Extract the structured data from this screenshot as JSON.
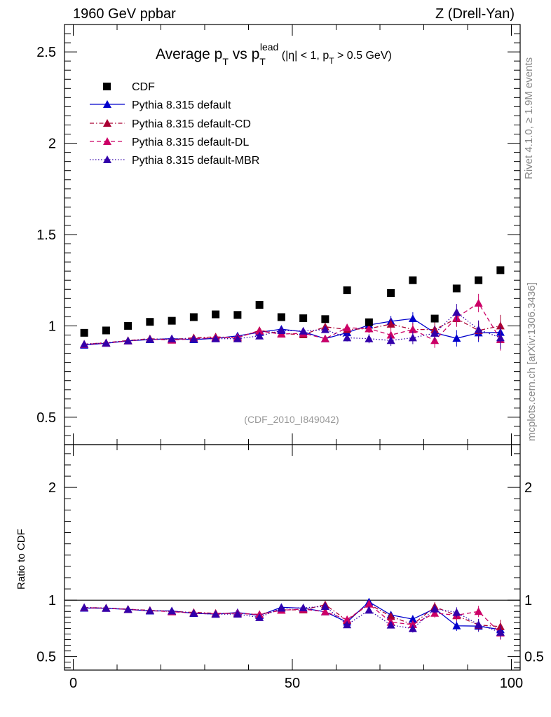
{
  "header": {
    "left": "1960 GeV ppbar",
    "right": "Z (Drell-Yan)"
  },
  "side_labels": {
    "rivet": "Rivet 4.1.0, ≥ 1.9M events",
    "mcplots": "mcplots.cern.ch [arXiv:1306.3436]"
  },
  "chart_data": {
    "type": "line",
    "title": {
      "prefix": "Average p",
      "sub1": "T",
      "mid": " vs p",
      "sub2": "T",
      "sup2": "lead",
      "cut_open": " (|η| < 1, p",
      "cut_sub": "T",
      "cut_close": " > 0.5 GeV)"
    },
    "reference": "(CDF_2010_I849042)",
    "xlim": [
      -2,
      102
    ],
    "x_ticks": [
      0,
      50,
      100
    ],
    "main": {
      "ylim": [
        0.35,
        2.65
      ],
      "y_ticks": [
        0.5,
        1,
        1.5,
        2,
        2.5
      ],
      "ylabel": ""
    },
    "ratio": {
      "ylim": [
        0.38,
        2.38
      ],
      "y_ticks": [
        0.5,
        1,
        2
      ],
      "ylabel": "Ratio to CDF",
      "reference_line": 1
    },
    "x": [
      2.5,
      7.5,
      12.5,
      17.5,
      22.5,
      27.5,
      32.5,
      37.5,
      42.5,
      47.5,
      52.5,
      57.5,
      62.5,
      67.5,
      72.5,
      77.5,
      82.5,
      87.5,
      92.5,
      97.5
    ],
    "data": {
      "name": "CDF",
      "values": [
        0.962,
        0.975,
        1.0,
        1.022,
        1.028,
        1.048,
        1.063,
        1.06,
        1.115,
        1.048,
        1.042,
        1.037,
        1.195,
        1.02,
        1.18,
        1.25,
        1.04,
        1.205,
        1.25,
        1.305
      ]
    },
    "series": [
      {
        "name": "Pythia 8.315 default",
        "color": "#0000cc",
        "dash": "solid",
        "values": [
          0.895,
          0.905,
          0.918,
          0.925,
          0.93,
          0.925,
          0.932,
          0.945,
          0.965,
          0.982,
          0.968,
          0.93,
          0.963,
          1.005,
          1.025,
          1.04,
          0.962,
          0.932,
          0.962,
          0.965
        ],
        "errors": [
          0.004,
          0.004,
          0.005,
          0.005,
          0.006,
          0.006,
          0.007,
          0.008,
          0.01,
          0.012,
          0.014,
          0.016,
          0.02,
          0.025,
          0.03,
          0.035,
          0.04,
          0.045,
          0.05,
          0.06
        ],
        "ratio": [
          0.93,
          0.928,
          0.918,
          0.905,
          0.905,
          0.883,
          0.877,
          0.891,
          0.865,
          0.937,
          0.929,
          0.897,
          0.806,
          0.985,
          0.869,
          0.832,
          0.925,
          0.773,
          0.77,
          0.739
        ]
      },
      {
        "name": "Pythia 8.315 default-CD",
        "color": "#aa0033",
        "dash": "dashdot",
        "values": [
          0.9,
          0.908,
          0.92,
          0.93,
          0.925,
          0.935,
          0.94,
          0.935,
          0.975,
          0.958,
          0.952,
          0.995,
          0.98,
          0.985,
          1.01,
          0.98,
          0.98,
          1.04,
          0.975,
          1.0
        ],
        "errors": [
          0.004,
          0.004,
          0.005,
          0.005,
          0.006,
          0.006,
          0.007,
          0.008,
          0.01,
          0.012,
          0.014,
          0.016,
          0.02,
          0.025,
          0.03,
          0.035,
          0.04,
          0.045,
          0.05,
          0.06
        ],
        "ratio": [
          0.935,
          0.931,
          0.92,
          0.91,
          0.9,
          0.892,
          0.884,
          0.882,
          0.874,
          0.914,
          0.914,
          0.96,
          0.82,
          0.966,
          0.856,
          0.784,
          0.942,
          0.863,
          0.78,
          0.766
        ]
      },
      {
        "name": "Pythia 8.315 default-DL",
        "color": "#cc0066",
        "dash": "dashed",
        "values": [
          0.898,
          0.906,
          0.918,
          0.928,
          0.922,
          0.93,
          0.935,
          0.938,
          0.972,
          0.955,
          0.96,
          0.93,
          0.99,
          0.985,
          0.95,
          0.98,
          0.92,
          1.045,
          1.125,
          0.925
        ],
        "errors": [
          0.004,
          0.004,
          0.005,
          0.005,
          0.006,
          0.006,
          0.007,
          0.008,
          0.01,
          0.012,
          0.014,
          0.016,
          0.02,
          0.025,
          0.03,
          0.035,
          0.04,
          0.045,
          0.05,
          0.06
        ],
        "ratio": [
          0.933,
          0.929,
          0.918,
          0.908,
          0.897,
          0.887,
          0.88,
          0.885,
          0.872,
          0.911,
          0.921,
          0.897,
          0.828,
          0.966,
          0.805,
          0.784,
          0.885,
          0.867,
          0.9,
          0.709
        ]
      },
      {
        "name": "Pythia 8.315 default-MBR",
        "color": "#3300aa",
        "dash": "dotted",
        "values": [
          0.9,
          0.907,
          0.919,
          0.927,
          0.93,
          0.928,
          0.93,
          0.93,
          0.945,
          0.975,
          0.972,
          0.98,
          0.935,
          0.93,
          0.92,
          0.935,
          0.96,
          1.075,
          0.98,
          0.935
        ],
        "errors": [
          0.004,
          0.004,
          0.005,
          0.005,
          0.006,
          0.006,
          0.007,
          0.008,
          0.01,
          0.012,
          0.014,
          0.016,
          0.02,
          0.025,
          0.03,
          0.035,
          0.04,
          0.045,
          0.05,
          0.06
        ],
        "ratio": [
          0.935,
          0.93,
          0.919,
          0.907,
          0.905,
          0.885,
          0.875,
          0.877,
          0.847,
          0.93,
          0.933,
          0.945,
          0.782,
          0.912,
          0.78,
          0.748,
          0.923,
          0.892,
          0.784,
          0.716
        ]
      }
    ]
  }
}
